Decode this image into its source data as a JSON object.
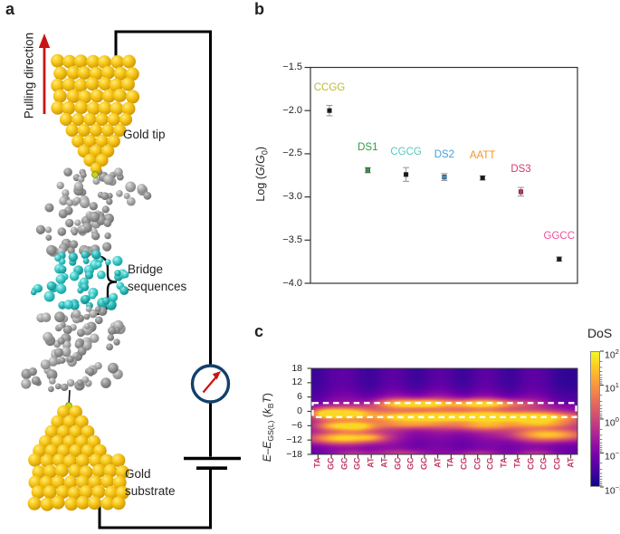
{
  "panel_a": {
    "label": "a",
    "pulling_direction": "Pulling direction",
    "gold_tip": "Gold tip",
    "bridge_sequences": [
      "Bridge",
      "sequences"
    ],
    "gold_substrate": [
      "Gold",
      "substrate"
    ],
    "colors": {
      "gold": "#f6c413",
      "dna_gray": "#a6a6a6",
      "bridge_cyan": "#41cbcb",
      "arrow_red": "#c81414",
      "wire_black": "#000000",
      "meter_ring_navy": "#14406a",
      "needle_red": "#c81414",
      "linker_atom": "#c9d41a"
    }
  },
  "chart_data": [
    {
      "id": "conductance_scatter",
      "type": "scatter",
      "panel_label": "b",
      "ylabel_parts": [
        {
          "t": "Log ("
        },
        {
          "t": "G",
          "i": true
        },
        {
          "t": "/"
        },
        {
          "t": "G",
          "i": true
        },
        {
          "t": "0",
          "sub": true
        },
        {
          "t": ")"
        }
      ],
      "ylim": [
        -4.0,
        -1.5
      ],
      "yticks": [
        -1.5,
        -2.0,
        -2.5,
        -3.0,
        -3.5,
        -4.0
      ],
      "grid": false,
      "axis_color": "#333333",
      "error_color": "#9b9b9b",
      "points": [
        {
          "label": "CCGG",
          "value": -2.0,
          "error": 0.06,
          "label_color": "#b9bd2f",
          "marker_color": "#1a1a1a"
        },
        {
          "label": "DS1",
          "value": -2.69,
          "error": 0.03,
          "label_color": "#2e9e3f",
          "marker_color": "#2e9e3f"
        },
        {
          "label": "CGCG",
          "value": -2.74,
          "error": 0.08,
          "label_color": "#52cbbc",
          "marker_color": "#1a1a1a"
        },
        {
          "label": "DS2",
          "value": -2.77,
          "error": 0.04,
          "label_color": "#41a1d8",
          "marker_color": "#2f8fd0"
        },
        {
          "label": "AATT",
          "value": -2.78,
          "error": 0.025,
          "label_color": "#f7941e",
          "marker_color": "#1a1a1a"
        },
        {
          "label": "DS3",
          "value": -2.94,
          "error": 0.05,
          "label_color": "#d63a6a",
          "marker_color": "#cc2f63"
        },
        {
          "label": "GGCC",
          "value": -3.72,
          "error": 0.025,
          "label_color": "#f0509b",
          "marker_color": "#1a1a1a"
        }
      ]
    },
    {
      "id": "dos_heatmap",
      "type": "heatmap",
      "panel_label": "c",
      "ylabel_parts": [
        {
          "t": "E",
          "i": true
        },
        {
          "t": "–"
        },
        {
          "t": "E",
          "i": true
        },
        {
          "t": "GS(L)",
          "sub": true
        },
        {
          "t": " ("
        },
        {
          "t": "k",
          "i": true
        },
        {
          "t": "B",
          "sub": true
        },
        {
          "t": "T",
          "i": true
        },
        {
          "t": ")"
        }
      ],
      "ylim": [
        -18,
        18
      ],
      "yticks": [
        18,
        12,
        6,
        0,
        -6,
        -12,
        -18
      ],
      "x_categories": [
        "TA",
        "GC",
        "GC",
        "GC",
        "AT",
        "AT",
        "GC",
        "GC",
        "GC",
        "AT",
        "TA",
        "CG",
        "CG",
        "CG",
        "TA",
        "TA",
        "CG",
        "CG",
        "CG",
        "AT"
      ],
      "x_label_color": "#c23a62",
      "highlight_box": {
        "y_top": 3.5,
        "y_bottom": -2.4,
        "color": "#ffffff",
        "style": "dashed"
      },
      "colorbar": {
        "title": "DoS",
        "scale": "log",
        "tick_exponents": [
          2,
          1,
          0,
          -1,
          -2
        ]
      },
      "colormap": "plasma",
      "plasma_stops": [
        "#0d0887",
        "#41049d",
        "#6a00a8",
        "#8f0da4",
        "#b12a90",
        "#cc4778",
        "#e16462",
        "#f2844b",
        "#fca636",
        "#fcce25",
        "#f0f921"
      ],
      "field": {
        "base": 0.205,
        "strips": {
          "centers": [
            0.3,
            4.35,
            7.9,
            11.35,
            14.9,
            18.6,
            20.0
          ],
          "sigma": 0.75,
          "amp": 0.085
        },
        "bands": [
          {
            "c": 2.4,
            "y": -0.8,
            "sx": 1.6,
            "sy": 1.6,
            "a": 1.05
          },
          {
            "c": 1.05,
            "y": -1.0,
            "sx": 0.6,
            "sy": 1.4,
            "a": 0.5
          },
          {
            "c": 1.6,
            "y": -6.1,
            "sx": 0.9,
            "sy": 1.3,
            "a": 0.6
          },
          {
            "c": 3.5,
            "y": -6.3,
            "sx": 1.0,
            "sy": 1.4,
            "a": 0.85
          },
          {
            "c": 2.3,
            "y": -11.3,
            "sx": 1.8,
            "sy": 1.6,
            "a": 1.0
          },
          {
            "c": 4.5,
            "y": -10.9,
            "sx": 0.7,
            "sy": 1.1,
            "a": 0.4
          },
          {
            "c": 3.3,
            "y": -17.9,
            "sx": 1.2,
            "sy": 1.1,
            "a": 0.3
          },
          {
            "c": 6.9,
            "y": 3.2,
            "sx": 1.4,
            "sy": 1.4,
            "a": 0.9
          },
          {
            "c": 8.8,
            "y": 3.3,
            "sx": 0.9,
            "sy": 1.2,
            "a": 0.5
          },
          {
            "c": 7.9,
            "y": -2.4,
            "sx": 2.2,
            "sy": 1.5,
            "a": 1.0
          },
          {
            "c": 7.6,
            "y": -5.6,
            "sx": 1.7,
            "sy": 1.1,
            "a": 0.5
          },
          {
            "c": 7.0,
            "y": -17.7,
            "sx": 1.4,
            "sy": 1.2,
            "a": 0.38
          },
          {
            "c": 12.8,
            "y": 3.2,
            "sx": 2.2,
            "sy": 1.4,
            "a": 1.05
          },
          {
            "c": 12.9,
            "y": -2.2,
            "sx": 2.1,
            "sy": 1.5,
            "a": 1.0
          },
          {
            "c": 13.0,
            "y": -6.0,
            "sx": 1.8,
            "sy": 1.3,
            "a": 0.55
          },
          {
            "c": 12.3,
            "y": -17.9,
            "sx": 1.3,
            "sy": 1.1,
            "a": 0.35
          },
          {
            "c": 17.5,
            "y": -2.4,
            "sx": 2.1,
            "sy": 1.5,
            "a": 0.95
          },
          {
            "c": 17.6,
            "y": -5.3,
            "sx": 1.7,
            "sy": 1.1,
            "a": 0.5
          },
          {
            "c": 18.0,
            "y": -9.9,
            "sx": 1.9,
            "sy": 1.8,
            "a": 1.0
          },
          {
            "c": 17.0,
            "y": -17.8,
            "sx": 1.2,
            "sy": 1.1,
            "a": 0.32
          }
        ]
      }
    }
  ]
}
